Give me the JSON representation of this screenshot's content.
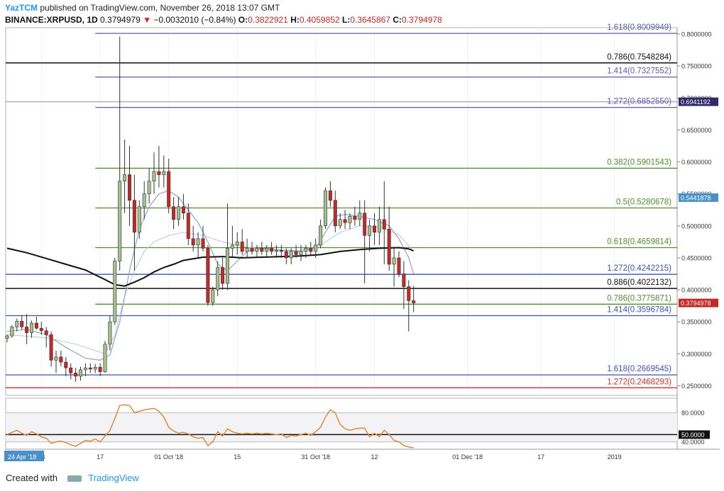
{
  "header": {
    "author": "YazTCM",
    "published_text": "published on TradingView.com, November 26, 2018 13:07 GMT",
    "symbol": "BINANCE:XRPUSD, 1D",
    "last": "0.3794979",
    "arrow": "▼",
    "change": "−0.0032010 (−0.84%)",
    "o_label": "O:",
    "o_value": "0.3822921",
    "h_label": "H:",
    "h_value": "0.4059852",
    "l_label": "L:",
    "l_value": "0.3645867",
    "c_label": "C:",
    "c_value": "0.3794978"
  },
  "footer": {
    "created_with": "Created with",
    "brand": "TradingView"
  },
  "colors": {
    "up_candle": "#a5c08f",
    "down_candle": "#c62828",
    "fib_blue": "#3f51b5",
    "fib_purple": "#5c5cae",
    "fib_green": "#558b2f",
    "fib_red": "#d32f2f",
    "black_line": "#111111",
    "ma_blue": "#8fa3c9",
    "rsi": "#e08a3c"
  },
  "chart_data": {
    "type": "candlestick",
    "y_axis_price": {
      "scale": "linear",
      "range": [
        0.235,
        0.81
      ],
      "ticks": [
        "0.8000000",
        "0.7500000",
        "0.7000000",
        "0.6500000",
        "0.6000000",
        "0.5500000",
        "0.5000000",
        "0.4500000",
        "0.4000000",
        "0.3500000",
        "0.3000000",
        "0.2500000"
      ]
    },
    "price_badges": [
      {
        "value": "0.6941192",
        "y": 0.6941192,
        "color": "#2e2a6b"
      },
      {
        "value": "0.5441878",
        "y": 0.5441878,
        "color": "#4a90c8"
      },
      {
        "value": "0.3794978",
        "y": 0.3794978,
        "color": "#c62828"
      }
    ],
    "fib_levels": [
      {
        "label": "1.618(0.8009949)",
        "y": 0.8009949,
        "color": "#5c5cae",
        "text_color": "#5c5cae",
        "x_start_day": 0
      },
      {
        "label": "0.786(0.7548284)",
        "y": 0.7548284,
        "color": "#111111",
        "text_color": "#111111",
        "x_start_day": -17
      },
      {
        "label": "1.414(0.7327552)",
        "y": 0.7327552,
        "color": "#5c5cae",
        "text_color": "#5c5cae",
        "x_start_day": 0
      },
      {
        "label": "",
        "y": 0.6941192,
        "color": "#9fa4c8",
        "text_color": "#5c5cae",
        "x_start_day": -17
      },
      {
        "label": "1.272(0.6852550)",
        "y": 0.685255,
        "color": "#5c5cae",
        "text_color": "#5c5cae",
        "x_start_day": 0
      },
      {
        "label": "0.382(0.5901543)",
        "y": 0.5901543,
        "color": "#558b2f",
        "text_color": "#558b2f",
        "x_start_day": 0
      },
      {
        "label": "0.5(0.5280678)",
        "y": 0.5280678,
        "color": "#558b2f",
        "text_color": "#558b2f",
        "x_start_day": 0
      },
      {
        "label": "0.618(0.4659814)",
        "y": 0.4659814,
        "color": "#558b2f",
        "text_color": "#558b2f",
        "x_start_day": 0
      },
      {
        "label": "1.272(0.4242215)",
        "y": 0.4242215,
        "color": "#3f51b5",
        "text_color": "#3f51b5",
        "x_start_day": -17
      },
      {
        "label": "0.886(0.4022132)",
        "y": 0.4022132,
        "color": "#111111",
        "text_color": "#111111",
        "x_start_day": -17
      },
      {
        "label": "0.786(0.3775871)",
        "y": 0.3775871,
        "color": "#558b2f",
        "text_color": "#558b2f",
        "x_start_day": 0
      },
      {
        "label": "1.414(0.3596784)",
        "y": 0.3596784,
        "color": "#3f51b5",
        "text_color": "#3f51b5",
        "x_start_day": -17
      },
      {
        "label": "1.618(0.2669545)",
        "y": 0.2669545,
        "color": "#3f51b5",
        "text_color": "#3f51b5",
        "x_start_day": -17
      },
      {
        "label": "1.272(0.2468293)",
        "y": 0.2468293,
        "color": "#d32f2f",
        "text_color": "#d32f2f",
        "x_start_day": -17
      }
    ],
    "x_axis": {
      "day_range": [
        -1,
        95
      ],
      "ticks": [
        {
          "label": "18",
          "day": 7
        },
        {
          "label": "17",
          "day": 19
        },
        {
          "label": "01 Oct '18",
          "day": 33
        },
        {
          "label": "15",
          "day": 47
        },
        {
          "label": "31 Oct '18",
          "day": 63
        },
        {
          "label": "12",
          "day": 75
        },
        {
          "label": "01 Dec '18",
          "day": 94
        },
        {
          "label": "17",
          "day": 109
        },
        {
          "label": "2019",
          "day": 124
        }
      ],
      "badge": "24 Apr '18"
    },
    "candles": [
      [
        0.324,
        0.33,
        0.318,
        0.328
      ],
      [
        0.328,
        0.345,
        0.325,
        0.342
      ],
      [
        0.342,
        0.355,
        0.335,
        0.351
      ],
      [
        0.351,
        0.36,
        0.338,
        0.342
      ],
      [
        0.342,
        0.362,
        0.315,
        0.333
      ],
      [
        0.333,
        0.352,
        0.325,
        0.348
      ],
      [
        0.348,
        0.358,
        0.338,
        0.34
      ],
      [
        0.34,
        0.35,
        0.33,
        0.336
      ],
      [
        0.336,
        0.342,
        0.31,
        0.33
      ],
      [
        0.33,
        0.335,
        0.28,
        0.29
      ],
      [
        0.29,
        0.305,
        0.27,
        0.295
      ],
      [
        0.295,
        0.305,
        0.28,
        0.287
      ],
      [
        0.287,
        0.295,
        0.265,
        0.278
      ],
      [
        0.278,
        0.285,
        0.26,
        0.27
      ],
      [
        0.27,
        0.278,
        0.256,
        0.265
      ],
      [
        0.265,
        0.28,
        0.258,
        0.275
      ],
      [
        0.275,
        0.285,
        0.265,
        0.278
      ],
      [
        0.278,
        0.285,
        0.27,
        0.276
      ],
      [
        0.276,
        0.284,
        0.27,
        0.279
      ],
      [
        0.279,
        0.285,
        0.265,
        0.272
      ],
      [
        0.272,
        0.32,
        0.27,
        0.315
      ],
      [
        0.315,
        0.36,
        0.305,
        0.35
      ],
      [
        0.35,
        0.45,
        0.345,
        0.445
      ],
      [
        0.445,
        0.796,
        0.43,
        0.57
      ],
      [
        0.57,
        0.635,
        0.52,
        0.58
      ],
      [
        0.58,
        0.625,
        0.5,
        0.54
      ],
      [
        0.54,
        0.58,
        0.43,
        0.49
      ],
      [
        0.49,
        0.54,
        0.48,
        0.53
      ],
      [
        0.53,
        0.57,
        0.51,
        0.55
      ],
      [
        0.55,
        0.59,
        0.535,
        0.57
      ],
      [
        0.57,
        0.615,
        0.55,
        0.585
      ],
      [
        0.585,
        0.625,
        0.56,
        0.58
      ],
      [
        0.58,
        0.61,
        0.56,
        0.585
      ],
      [
        0.585,
        0.605,
        0.52,
        0.53
      ],
      [
        0.53,
        0.545,
        0.495,
        0.51
      ],
      [
        0.51,
        0.545,
        0.5,
        0.53
      ],
      [
        0.53,
        0.55,
        0.51,
        0.52
      ],
      [
        0.52,
        0.535,
        0.47,
        0.48
      ],
      [
        0.48,
        0.5,
        0.46,
        0.47
      ],
      [
        0.47,
        0.49,
        0.45,
        0.48
      ],
      [
        0.48,
        0.5,
        0.46,
        0.465
      ],
      [
        0.465,
        0.47,
        0.375,
        0.38
      ],
      [
        0.38,
        0.405,
        0.375,
        0.4
      ],
      [
        0.4,
        0.445,
        0.39,
        0.435
      ],
      [
        0.435,
        0.45,
        0.4,
        0.41
      ],
      [
        0.41,
        0.535,
        0.4,
        0.465
      ],
      [
        0.465,
        0.5,
        0.45,
        0.47
      ],
      [
        0.47,
        0.49,
        0.455,
        0.475
      ],
      [
        0.475,
        0.495,
        0.455,
        0.46
      ],
      [
        0.46,
        0.48,
        0.45,
        0.465
      ],
      [
        0.465,
        0.475,
        0.455,
        0.46
      ],
      [
        0.46,
        0.47,
        0.45,
        0.465
      ],
      [
        0.465,
        0.475,
        0.455,
        0.46
      ],
      [
        0.46,
        0.47,
        0.45,
        0.465
      ],
      [
        0.465,
        0.475,
        0.455,
        0.46
      ],
      [
        0.46,
        0.47,
        0.45,
        0.462
      ],
      [
        0.462,
        0.47,
        0.45,
        0.46
      ],
      [
        0.46,
        0.465,
        0.44,
        0.45
      ],
      [
        0.45,
        0.465,
        0.44,
        0.46
      ],
      [
        0.46,
        0.47,
        0.45,
        0.455
      ],
      [
        0.455,
        0.47,
        0.445,
        0.46
      ],
      [
        0.46,
        0.47,
        0.45,
        0.465
      ],
      [
        0.465,
        0.475,
        0.455,
        0.46
      ],
      [
        0.46,
        0.48,
        0.45,
        0.47
      ],
      [
        0.47,
        0.51,
        0.465,
        0.5
      ],
      [
        0.5,
        0.56,
        0.495,
        0.555
      ],
      [
        0.555,
        0.57,
        0.53,
        0.54
      ],
      [
        0.54,
        0.555,
        0.49,
        0.5
      ],
      [
        0.5,
        0.52,
        0.495,
        0.51
      ],
      [
        0.51,
        0.525,
        0.495,
        0.505
      ],
      [
        0.505,
        0.52,
        0.495,
        0.515
      ],
      [
        0.515,
        0.53,
        0.5,
        0.51
      ],
      [
        0.51,
        0.54,
        0.5,
        0.52
      ],
      [
        0.52,
        0.54,
        0.41,
        0.485
      ],
      [
        0.485,
        0.51,
        0.46,
        0.5
      ],
      [
        0.5,
        0.52,
        0.47,
        0.49
      ],
      [
        0.49,
        0.53,
        0.47,
        0.51
      ],
      [
        0.51,
        0.57,
        0.44,
        0.495
      ],
      [
        0.495,
        0.53,
        0.43,
        0.44
      ],
      [
        0.44,
        0.465,
        0.405,
        0.45
      ],
      [
        0.45,
        0.46,
        0.42,
        0.425
      ],
      [
        0.425,
        0.445,
        0.37,
        0.405
      ],
      [
        0.405,
        0.415,
        0.335,
        0.383
      ],
      [
        0.383,
        0.406,
        0.365,
        0.3795
      ]
    ],
    "ma_black": [
      [
        0,
        0.465
      ],
      [
        4,
        0.458
      ],
      [
        8,
        0.449
      ],
      [
        12,
        0.44
      ],
      [
        16,
        0.431
      ],
      [
        20,
        0.416
      ],
      [
        22,
        0.408
      ],
      [
        24,
        0.406
      ],
      [
        26,
        0.412
      ],
      [
        28,
        0.419
      ],
      [
        30,
        0.428
      ],
      [
        32,
        0.435
      ],
      [
        34,
        0.44
      ],
      [
        36,
        0.446
      ],
      [
        40,
        0.451
      ],
      [
        44,
        0.452
      ],
      [
        48,
        0.45
      ],
      [
        52,
        0.451
      ],
      [
        56,
        0.452
      ],
      [
        60,
        0.453
      ],
      [
        64,
        0.455
      ],
      [
        68,
        0.46
      ],
      [
        72,
        0.463
      ],
      [
        76,
        0.465
      ],
      [
        80,
        0.466
      ],
      [
        82,
        0.464
      ],
      [
        83,
        0.461
      ]
    ],
    "ma_blue": [
      [
        0,
        0.335
      ],
      [
        4,
        0.338
      ],
      [
        8,
        0.33
      ],
      [
        12,
        0.31
      ],
      [
        16,
        0.293
      ],
      [
        19,
        0.29
      ],
      [
        21,
        0.298
      ],
      [
        23,
        0.35
      ],
      [
        25,
        0.43
      ],
      [
        27,
        0.495
      ],
      [
        29,
        0.53
      ],
      [
        31,
        0.55
      ],
      [
        33,
        0.555
      ],
      [
        35,
        0.545
      ],
      [
        37,
        0.525
      ],
      [
        39,
        0.505
      ],
      [
        41,
        0.475
      ],
      [
        43,
        0.44
      ],
      [
        45,
        0.43
      ],
      [
        47,
        0.445
      ],
      [
        49,
        0.46
      ],
      [
        52,
        0.465
      ],
      [
        56,
        0.462
      ],
      [
        60,
        0.46
      ],
      [
        63,
        0.465
      ],
      [
        65,
        0.49
      ],
      [
        67,
        0.515
      ],
      [
        69,
        0.518
      ],
      [
        72,
        0.515
      ],
      [
        75,
        0.51
      ],
      [
        78,
        0.5
      ],
      [
        80,
        0.48
      ],
      [
        82,
        0.45
      ],
      [
        83,
        0.425
      ]
    ],
    "ma_light": [
      [
        0,
        0.33
      ],
      [
        8,
        0.325
      ],
      [
        14,
        0.315
      ],
      [
        20,
        0.3
      ],
      [
        22,
        0.33
      ],
      [
        24,
        0.39
      ],
      [
        26,
        0.43
      ],
      [
        28,
        0.46
      ],
      [
        30,
        0.475
      ],
      [
        33,
        0.485
      ],
      [
        36,
        0.49
      ],
      [
        40,
        0.485
      ],
      [
        44,
        0.475
      ],
      [
        48,
        0.468
      ],
      [
        54,
        0.462
      ],
      [
        60,
        0.462
      ],
      [
        64,
        0.47
      ],
      [
        68,
        0.49
      ],
      [
        72,
        0.5
      ],
      [
        76,
        0.498
      ],
      [
        80,
        0.486
      ],
      [
        83,
        0.46
      ]
    ],
    "rsi": {
      "ticks": [
        "80.0000",
        "40.0000"
      ],
      "midline_badge": "50.0000",
      "range": [
        30,
        100
      ],
      "band": [
        40,
        80
      ],
      "values": [
        50,
        53,
        56,
        52,
        49,
        54,
        51,
        47,
        45,
        38,
        40,
        41,
        39,
        36,
        34,
        38,
        42,
        41,
        44,
        40,
        48,
        56,
        72,
        90,
        91,
        90,
        80,
        82,
        84,
        85,
        86,
        82,
        74,
        60,
        55,
        52,
        53,
        51,
        47,
        45,
        46,
        35,
        40,
        54,
        48,
        58,
        54,
        52,
        51,
        52,
        51,
        52,
        51,
        52,
        51,
        50,
        51,
        46,
        49,
        48,
        50,
        52,
        49,
        54,
        60,
        74,
        84,
        80,
        64,
        58,
        56,
        58,
        59,
        59,
        47,
        52,
        47,
        56,
        50,
        42,
        40,
        35,
        33,
        32
      ]
    }
  }
}
